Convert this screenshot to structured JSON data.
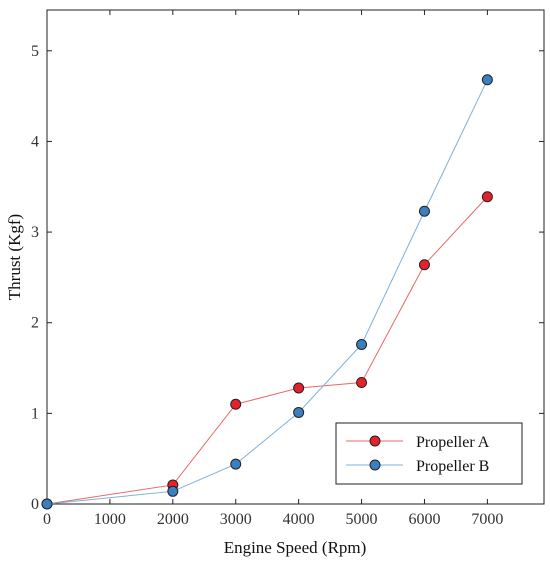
{
  "chart_data": {
    "type": "line",
    "title": "",
    "xlabel": "Engine Speed (Rpm)",
    "ylabel": "Thrust (Kgf)",
    "xlim": [
      0,
      7900
    ],
    "ylim": [
      0,
      5.45
    ],
    "xticks": [
      0,
      1000,
      2000,
      3000,
      4000,
      5000,
      6000,
      7000
    ],
    "yticks": [
      0,
      1,
      2,
      3,
      4,
      5
    ],
    "grid": false,
    "legend_position": "bottom-right",
    "series": [
      {
        "name": "Propeller A",
        "color": "#e8202a",
        "line_color": "#e86a6a",
        "x": [
          0,
          2000,
          3000,
          4000,
          5000,
          6000,
          7000
        ],
        "y": [
          0,
          0.21,
          1.1,
          1.28,
          1.34,
          2.64,
          3.39
        ]
      },
      {
        "name": "Propeller B",
        "color": "#3a7fc0",
        "line_color": "#7fb0d8",
        "x": [
          0,
          2000,
          3000,
          4000,
          5000,
          6000,
          7000
        ],
        "y": [
          0,
          0.14,
          0.44,
          1.01,
          1.76,
          3.23,
          4.68
        ]
      }
    ]
  }
}
